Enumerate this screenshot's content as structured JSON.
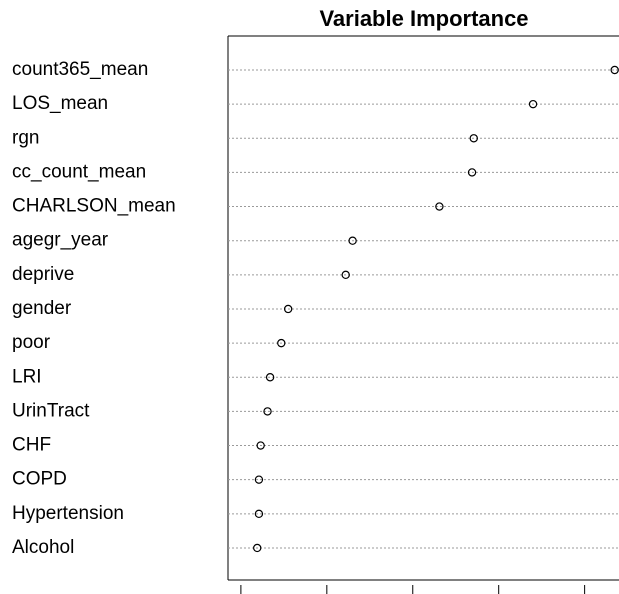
{
  "chart_data": {
    "type": "dotchart",
    "title": "Variable Importance",
    "categories": [
      "count365_mean",
      "LOS_mean",
      "rgn",
      "cc_count_mean",
      "CHARLSON_mean",
      "agegr_year",
      "deprive",
      "gender",
      "poor",
      "LRI",
      "UrinTract",
      "CHF",
      "COPD",
      "Hypertension",
      "Alcohol"
    ],
    "values": [
      4.35,
      3.4,
      2.71,
      2.69,
      2.31,
      1.3,
      1.22,
      0.55,
      0.47,
      0.34,
      0.31,
      0.23,
      0.21,
      0.21,
      0.19
    ],
    "color": "#000000",
    "xlim": [
      -0.15,
      4.4
    ],
    "xticks": [
      0,
      1,
      2,
      3,
      4
    ],
    "grid": true
  }
}
